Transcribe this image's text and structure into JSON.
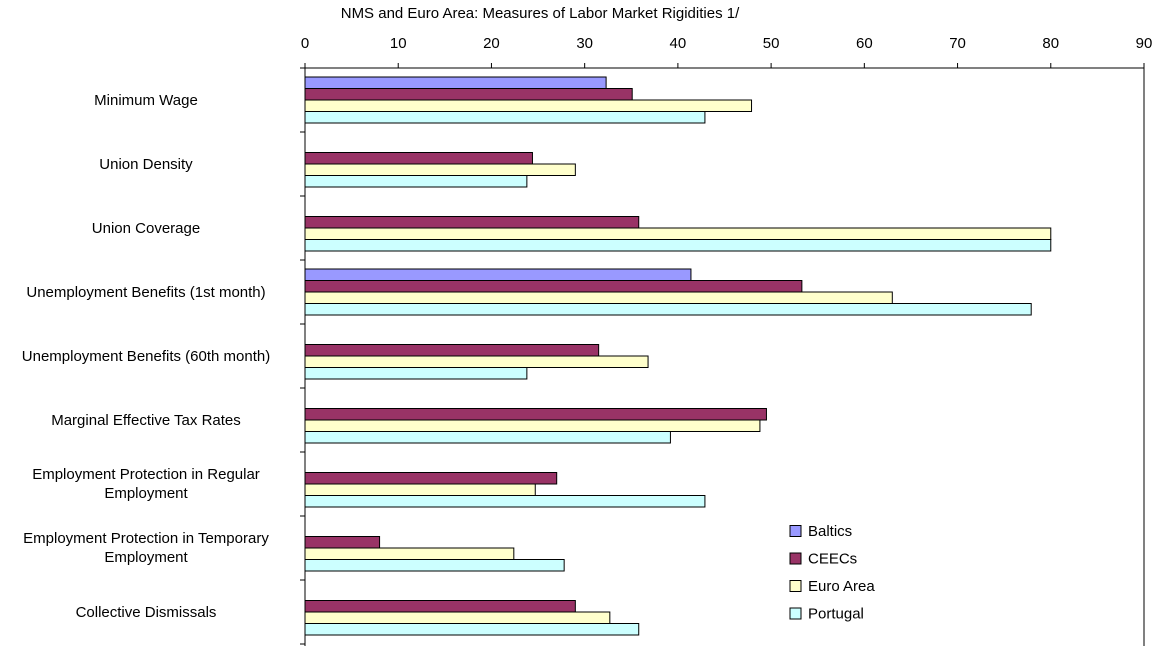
{
  "chart_data": {
    "type": "bar",
    "orientation": "horizontal",
    "title": "NMS and Euro Area: Measures of Labor Market Rigidities 1/",
    "categories": [
      "Minimum Wage",
      "Union Density",
      "Union Coverage",
      "Unemployment Benefits (1st month)",
      "Unemployment Benefits (60th month)",
      "Marginal Effective Tax Rates",
      "Employment Protection in Regular Employment",
      "Employment Protection in Temporary Employment",
      "Collective Dismissals"
    ],
    "series": [
      {
        "name": "Baltics",
        "color": "#9999ff",
        "values": [
          32.3,
          null,
          null,
          41.4,
          null,
          null,
          null,
          null,
          null
        ]
      },
      {
        "name": "CEECs",
        "color": "#993366",
        "values": [
          35.1,
          24.4,
          35.8,
          53.3,
          31.5,
          49.5,
          27.0,
          8.0,
          29.0
        ]
      },
      {
        "name": "Euro Area",
        "color": "#ffffcc",
        "values": [
          47.9,
          29.0,
          80,
          63.0,
          36.8,
          48.8,
          24.7,
          22.4,
          32.7
        ]
      },
      {
        "name": "Portugal",
        "color": "#ccffff",
        "values": [
          42.9,
          23.8,
          80,
          77.9,
          23.8,
          39.2,
          42.9,
          27.8,
          35.8
        ]
      }
    ],
    "xlim": [
      0,
      90
    ],
    "xticks": [
      0,
      10,
      20,
      30,
      40,
      50,
      60,
      70,
      80,
      90
    ],
    "legend": "lower-right"
  }
}
